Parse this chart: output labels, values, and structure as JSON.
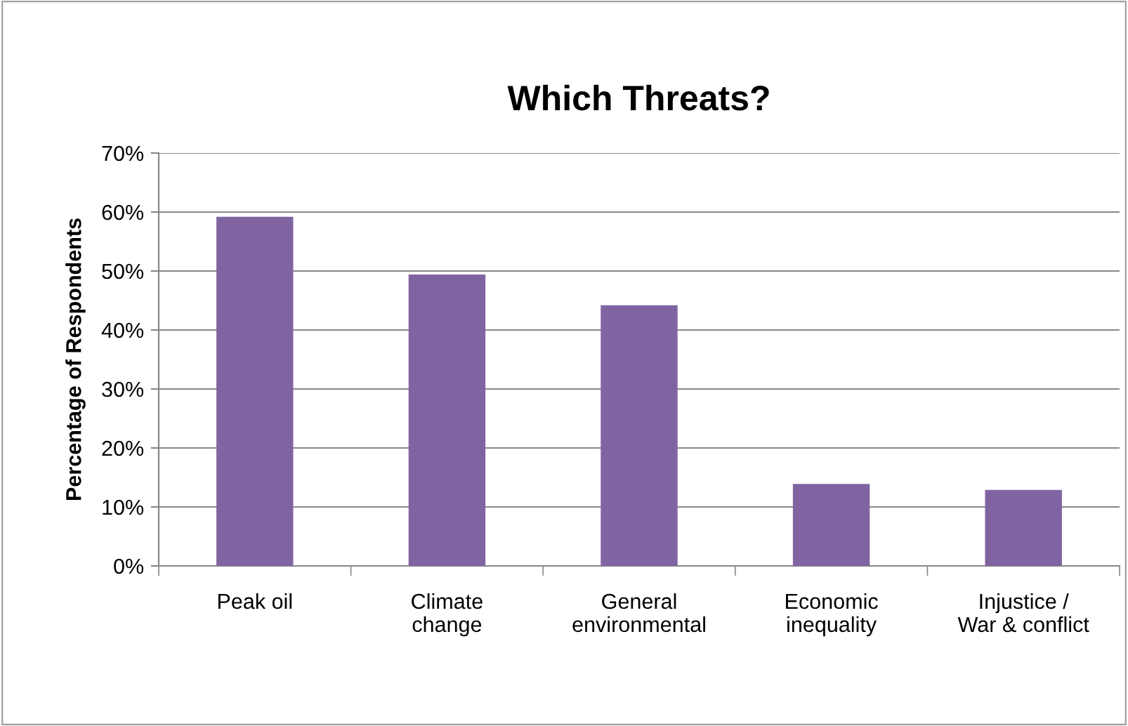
{
  "chart_data": {
    "type": "bar",
    "title": "Which Threats?",
    "ylabel": "Percentage of Respondents",
    "categories": [
      "Peak oil",
      "Climate\nchange",
      "General\nenvironmental",
      "Economic\ninequality",
      "Injustice /\nWar & conflict"
    ],
    "values": [
      59.2,
      49.4,
      44.2,
      13.9,
      12.9
    ],
    "color": "#8064a2",
    "ylim": [
      0,
      70
    ],
    "yticks": [
      {
        "value": 0,
        "label": "0%"
      },
      {
        "value": 10,
        "label": "10%"
      },
      {
        "value": 20,
        "label": "20%"
      },
      {
        "value": 30,
        "label": "30%"
      },
      {
        "value": 40,
        "label": "40%"
      },
      {
        "value": 50,
        "label": "50%"
      },
      {
        "value": 60,
        "label": "60%"
      },
      {
        "value": 70,
        "label": "70%"
      }
    ],
    "grid": "y",
    "legend": false
  }
}
